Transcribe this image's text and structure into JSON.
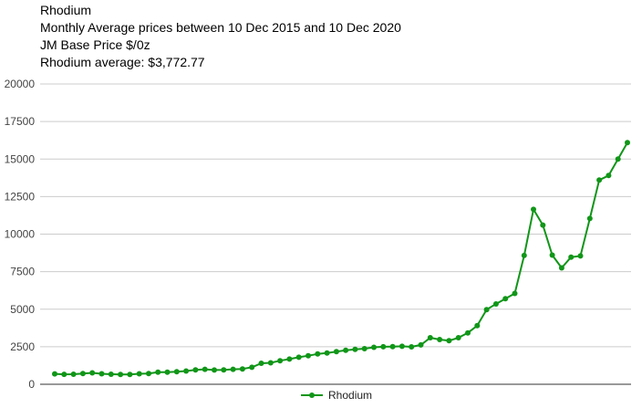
{
  "chart_data": {
    "type": "line",
    "title": "Rhodium",
    "subtitle": "Monthly Average prices between 10 Dec 2015 and 10 Dec 2020",
    "unit_label": "JM Base Price $/0z",
    "average_label": "Rhodium average: $3,772.77",
    "ylim": [
      0,
      20000
    ],
    "yticks": [
      0,
      2500,
      5000,
      7500,
      10000,
      12500,
      15000,
      17500,
      20000
    ],
    "grid": true,
    "legend_position": "bottom",
    "series": [
      {
        "name": "Rhodium",
        "color": "#109618",
        "values": [
          690,
          660,
          670,
          720,
          760,
          700,
          670,
          650,
          650,
          700,
          720,
          800,
          800,
          840,
          880,
          960,
          1000,
          950,
          960,
          1000,
          1020,
          1130,
          1400,
          1430,
          1570,
          1680,
          1800,
          1900,
          2020,
          2080,
          2170,
          2260,
          2320,
          2370,
          2460,
          2500,
          2510,
          2530,
          2490,
          2620,
          3100,
          2980,
          2900,
          3100,
          3420,
          3900,
          4970,
          5350,
          5700,
          6050,
          8580,
          11650,
          10600,
          8600,
          7750,
          8470,
          8550,
          11040,
          13600,
          13900,
          15000,
          16100
        ]
      }
    ]
  }
}
